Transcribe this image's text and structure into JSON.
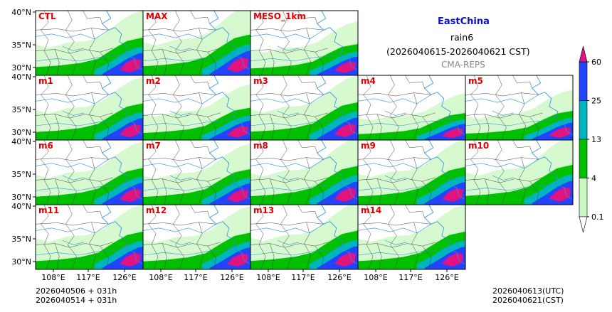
{
  "header": {
    "region": "EastChina",
    "variable": "rain6",
    "period": "(2026040615-2026040621 CST)",
    "source": "CMA-REPS"
  },
  "panels": [
    {
      "label": "CTL",
      "intensity": 0.85
    },
    {
      "label": "MAX",
      "intensity": 1.0
    },
    {
      "label": "MESO_1km",
      "intensity": 0.55
    },
    {
      "label": "m1",
      "intensity": 0.8
    },
    {
      "label": "m2",
      "intensity": 0.6
    },
    {
      "label": "m3",
      "intensity": 0.85
    },
    {
      "label": "m4",
      "intensity": 0.35
    },
    {
      "label": "m5",
      "intensity": 0.45
    },
    {
      "label": "m6",
      "intensity": 0.8
    },
    {
      "label": "m7",
      "intensity": 0.75
    },
    {
      "label": "m8",
      "intensity": 0.9
    },
    {
      "label": "m9",
      "intensity": 0.85
    },
    {
      "label": "m10",
      "intensity": 0.95
    },
    {
      "label": "m11",
      "intensity": 0.85
    },
    {
      "label": "m12",
      "intensity": 0.8
    },
    {
      "label": "m13",
      "intensity": 0.9
    },
    {
      "label": "m14",
      "intensity": 0.85
    }
  ],
  "axes": {
    "lat_labels": [
      "40°N",
      "35°N",
      "30°N"
    ],
    "lon_labels": [
      "108°E",
      "117°E",
      "126°E"
    ]
  },
  "colorbar": {
    "levels": [
      "60",
      "25",
      "13",
      "4",
      "0.1"
    ],
    "colors": [
      "#2244ff",
      "#00b5c0",
      "#00c000",
      "#c8f7c0"
    ],
    "extend_color_top": "#e0137f",
    "extend_color_bottom": "#ffffff"
  },
  "footer": {
    "init_line1": "2026040506  +  031h",
    "init_line2": "2026040514  +  031h",
    "valid_utc": "2026040613(UTC)",
    "valid_cst": "2026040621(CST)"
  },
  "colors": {
    "label": "#e00000",
    "light_green": "#c8f7c0",
    "green": "#00c000",
    "cyan": "#00b5c0",
    "blue": "#2244ff",
    "magenta": "#e0137f",
    "river": "#2b8fe0",
    "border": "#444444"
  }
}
